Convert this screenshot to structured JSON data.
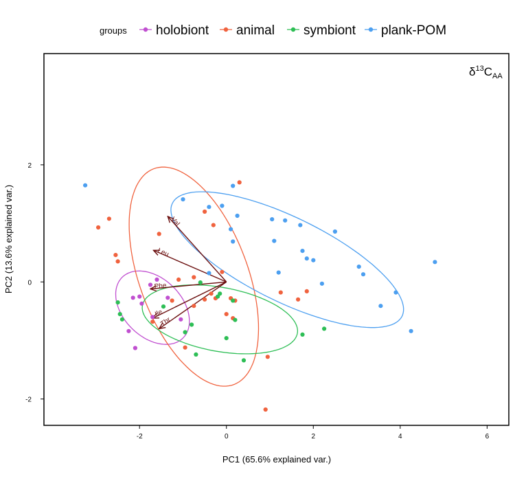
{
  "chart_data": {
    "type": "scatter",
    "annotation": "δ13CAA",
    "annotation_parts": {
      "delta": "δ",
      "sup": "13",
      "base": "C",
      "sub": "AA"
    },
    "xlabel": "PC1 (65.6% explained var.)",
    "ylabel": "PC2 (13.6% explained var.)",
    "xlim": [
      -4.2,
      6.5
    ],
    "ylim": [
      -2.45,
      3.9
    ],
    "x_ticks": [
      -2,
      0,
      2,
      4,
      6
    ],
    "y_ticks": [
      -2,
      0,
      2
    ],
    "grid": false,
    "legend": {
      "title": "groups",
      "position": "top"
    },
    "series": [
      {
        "name": "holobiont",
        "color": "#c04fd0",
        "points": [
          [
            -1.6,
            0.04
          ],
          [
            -1.75,
            -0.05
          ],
          [
            -2.0,
            -0.25
          ],
          [
            -2.15,
            -0.27
          ],
          [
            -1.95,
            -0.37
          ],
          [
            -1.35,
            -0.27
          ],
          [
            -1.05,
            -0.64
          ],
          [
            -1.7,
            -0.6
          ],
          [
            -2.25,
            -0.84
          ],
          [
            -2.1,
            -1.13
          ]
        ],
        "ellipse": {
          "cx": -1.7,
          "cy": -0.44,
          "rx": 0.9,
          "ry": 0.55,
          "angle": -25
        }
      },
      {
        "name": "animal",
        "color": "#f0623e",
        "points": [
          [
            0.3,
            1.7
          ],
          [
            -0.5,
            1.2
          ],
          [
            -0.3,
            0.97
          ],
          [
            -1.55,
            0.82
          ],
          [
            -2.7,
            1.08
          ],
          [
            -2.95,
            0.93
          ],
          [
            -2.55,
            0.46
          ],
          [
            -2.5,
            0.35
          ],
          [
            -0.1,
            0.17
          ],
          [
            -0.75,
            0.08
          ],
          [
            -1.1,
            0.04
          ],
          [
            -0.35,
            -0.2
          ],
          [
            0.1,
            -0.28
          ],
          [
            0.2,
            -0.32
          ],
          [
            -0.25,
            -0.28
          ],
          [
            -0.5,
            -0.3
          ],
          [
            -0.75,
            -0.41
          ],
          [
            -1.25,
            -0.32
          ],
          [
            1.25,
            -0.18
          ],
          [
            1.85,
            -0.16
          ],
          [
            1.65,
            -0.3
          ],
          [
            -1.7,
            -0.68
          ],
          [
            0.0,
            -0.55
          ],
          [
            0.15,
            -0.62
          ],
          [
            -0.95,
            -1.12
          ],
          [
            0.95,
            -1.28
          ],
          [
            0.9,
            -2.18
          ]
        ],
        "ellipse": {
          "cx": -0.75,
          "cy": 0.09,
          "rx": 2.08,
          "ry": 1.18,
          "angle": -58
        }
      },
      {
        "name": "symbiont",
        "color": "#2dbe55",
        "points": [
          [
            -0.6,
            -0.01
          ],
          [
            -0.15,
            -0.2
          ],
          [
            -0.2,
            -0.25
          ],
          [
            0.15,
            -0.32
          ],
          [
            -2.5,
            -0.35
          ],
          [
            -1.45,
            -0.42
          ],
          [
            -2.45,
            -0.55
          ],
          [
            -2.4,
            -0.64
          ],
          [
            -0.8,
            -0.73
          ],
          [
            0.2,
            -0.65
          ],
          [
            2.25,
            -0.8
          ],
          [
            1.75,
            -0.9
          ],
          [
            -0.95,
            -0.86
          ],
          [
            0.0,
            -0.96
          ],
          [
            -0.7,
            -1.24
          ],
          [
            0.4,
            -1.34
          ]
        ],
        "ellipse": {
          "cx": -0.15,
          "cy": -0.64,
          "rx": 1.8,
          "ry": 0.55,
          "angle": -7
        }
      },
      {
        "name": "plank-POM",
        "color": "#4c9ff0",
        "points": [
          [
            -3.25,
            1.65
          ],
          [
            0.15,
            1.64
          ],
          [
            -1.0,
            1.41
          ],
          [
            -0.1,
            1.3
          ],
          [
            -0.4,
            1.28
          ],
          [
            0.25,
            1.13
          ],
          [
            1.05,
            1.07
          ],
          [
            1.35,
            1.05
          ],
          [
            1.7,
            0.97
          ],
          [
            0.1,
            0.9
          ],
          [
            2.5,
            0.86
          ],
          [
            0.15,
            0.69
          ],
          [
            1.1,
            0.7
          ],
          [
            1.75,
            0.53
          ],
          [
            1.85,
            0.4
          ],
          [
            2.0,
            0.37
          ],
          [
            3.05,
            0.26
          ],
          [
            4.8,
            0.34
          ],
          [
            1.2,
            0.16
          ],
          [
            3.15,
            0.13
          ],
          [
            -0.4,
            0.15
          ],
          [
            2.2,
            -0.03
          ],
          [
            3.9,
            -0.18
          ],
          [
            3.55,
            -0.41
          ],
          [
            4.25,
            -0.84
          ]
        ],
        "ellipse": {
          "cx": 1.4,
          "cy": 0.38,
          "rx": 2.82,
          "ry": 0.75,
          "angle": -19
        }
      }
    ],
    "loadings": [
      {
        "label": "Val",
        "x": -1.35,
        "y": 1.12
      },
      {
        "label": "Leu",
        "x": -1.68,
        "y": 0.54
      },
      {
        "label": "Phe",
        "x": -1.75,
        "y": -0.12
      },
      {
        "label": "Ile",
        "x": -1.7,
        "y": -0.62
      },
      {
        "label": "Thr",
        "x": -1.55,
        "y": -0.8
      }
    ],
    "loading_color": "#6b0f0f"
  }
}
